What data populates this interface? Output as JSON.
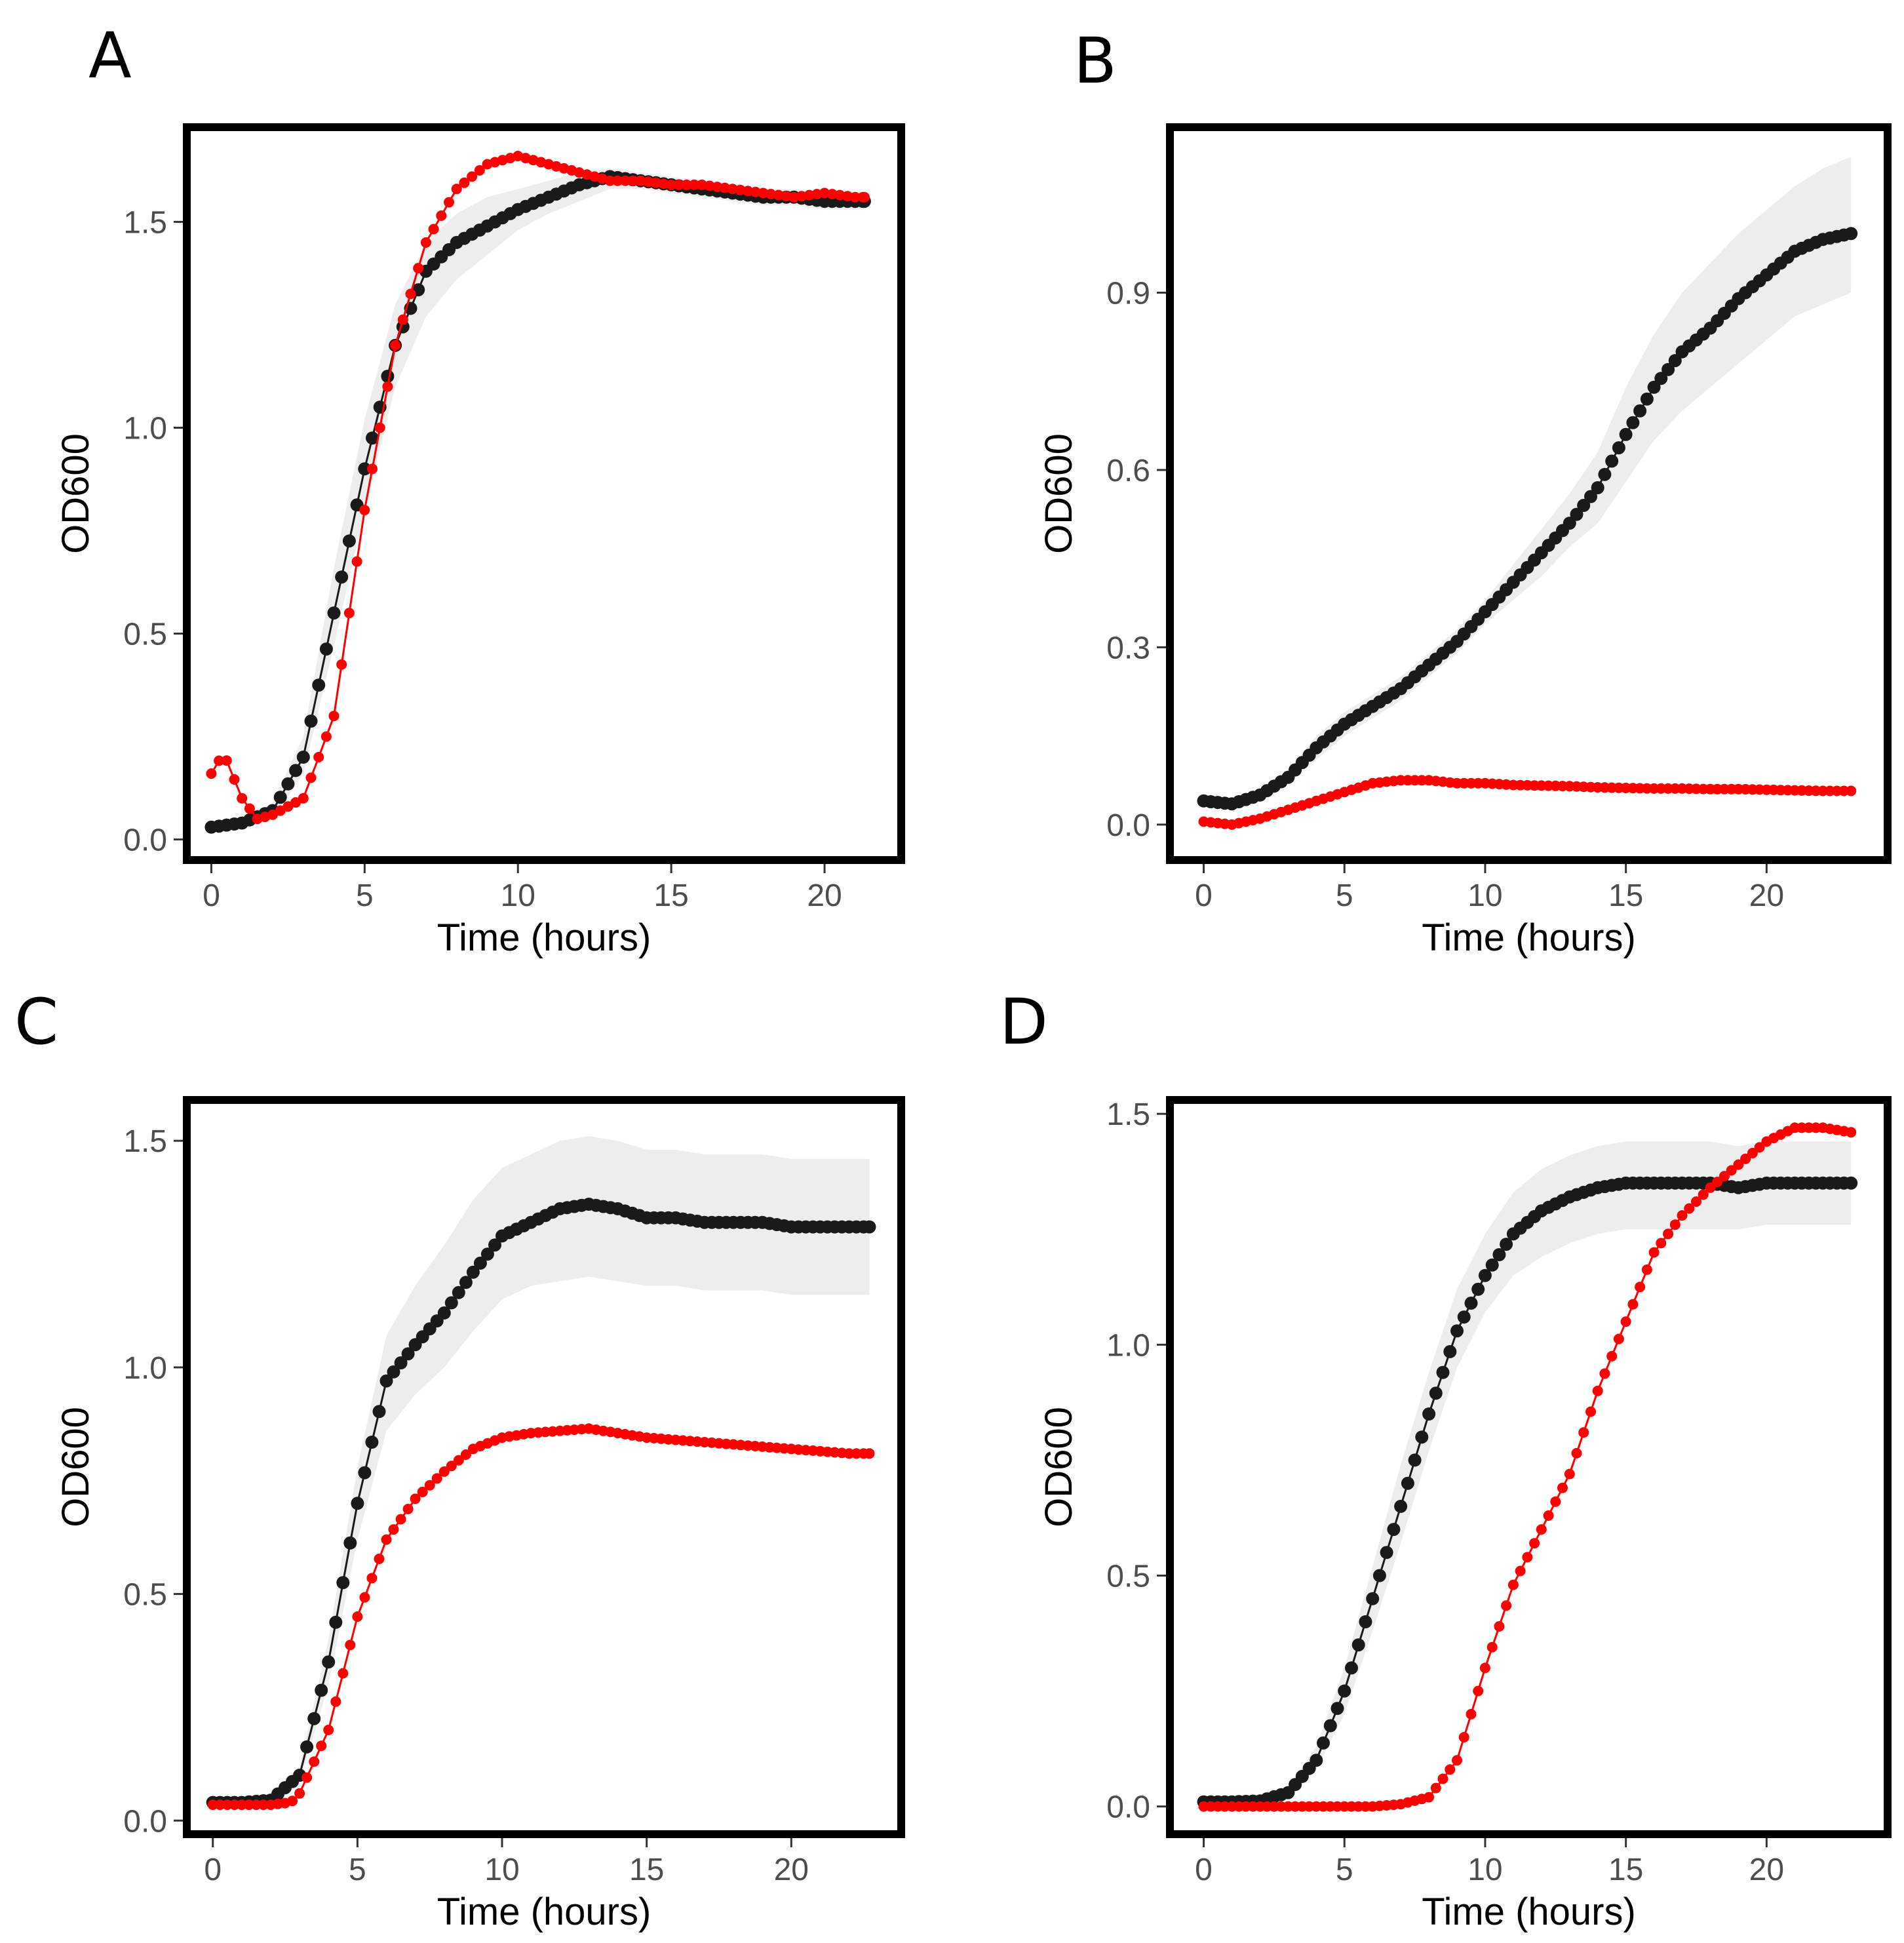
{
  "figure": {
    "panels": [
      {
        "letter": "A",
        "id": "A"
      },
      {
        "letter": "B",
        "id": "B"
      },
      {
        "letter": "C",
        "id": "C"
      },
      {
        "letter": "D",
        "id": "D"
      }
    ]
  },
  "colors": {
    "series_black": "#1a1a1a",
    "series_red": "#ff0000",
    "ribbon": "#ebebeb",
    "frame": "#000000",
    "tick_label": "#4d4d4d"
  },
  "chart_data": [
    {
      "panel": "A",
      "type": "line",
      "xlabel": "Time (hours)",
      "ylabel": "OD600",
      "xlim": [
        -0.8,
        22.5
      ],
      "ylim": [
        -0.05,
        1.73
      ],
      "x_ticks": [
        0,
        5,
        10,
        15,
        20
      ],
      "y_ticks": [
        0.0,
        0.5,
        1.0,
        1.5
      ],
      "x_tick_labels": [
        "0",
        "5",
        "10",
        "15",
        "20"
      ],
      "y_tick_labels": [
        "0.0",
        "0.5",
        "1.0",
        "1.5"
      ],
      "series": [
        {
          "name": "black",
          "color": "#1a1a1a",
          "x": [
            0,
            1,
            2,
            3,
            4,
            5,
            6,
            7,
            8,
            9,
            10,
            11,
            12,
            13,
            14,
            15,
            16,
            17,
            18,
            19,
            20,
            21,
            21.3
          ],
          "y": [
            0.03,
            0.04,
            0.07,
            0.2,
            0.55,
            0.9,
            1.2,
            1.38,
            1.45,
            1.49,
            1.53,
            1.56,
            1.59,
            1.61,
            1.6,
            1.59,
            1.58,
            1.57,
            1.56,
            1.56,
            1.55,
            1.55,
            1.55
          ],
          "ribbon_lower": [
            0.02,
            0.03,
            0.05,
            0.16,
            0.47,
            0.8,
            1.1,
            1.27,
            1.36,
            1.42,
            1.48,
            1.52,
            1.55,
            1.58,
            1.58,
            1.57,
            1.56,
            1.55,
            1.54,
            1.54,
            1.53,
            1.53,
            1.53
          ],
          "ribbon_upper": [
            0.04,
            0.05,
            0.09,
            0.25,
            0.66,
            1.02,
            1.3,
            1.45,
            1.52,
            1.56,
            1.58,
            1.6,
            1.62,
            1.63,
            1.62,
            1.61,
            1.6,
            1.59,
            1.58,
            1.58,
            1.57,
            1.57,
            1.57
          ]
        },
        {
          "name": "red",
          "color": "#ff0000",
          "x": [
            0,
            0.4,
            1,
            1.5,
            2,
            3,
            4,
            5,
            6,
            7,
            8,
            9,
            10,
            11,
            12,
            13,
            14,
            15,
            16,
            17,
            18,
            19,
            20,
            21,
            21.3
          ],
          "y": [
            0.16,
            0.21,
            0.1,
            0.05,
            0.06,
            0.1,
            0.3,
            0.8,
            1.2,
            1.45,
            1.58,
            1.64,
            1.66,
            1.64,
            1.62,
            1.6,
            1.6,
            1.59,
            1.59,
            1.58,
            1.57,
            1.56,
            1.57,
            1.56,
            1.56
          ]
        }
      ]
    },
    {
      "panel": "B",
      "type": "line",
      "xlabel": "Time (hours)",
      "ylabel": "OD600",
      "xlim": [
        -1.2,
        24.3
      ],
      "ylim": [
        -0.06,
        1.18
      ],
      "x_ticks": [
        0,
        5,
        10,
        15,
        20
      ],
      "y_ticks": [
        0.0,
        0.3,
        0.6,
        0.9
      ],
      "x_tick_labels": [
        "0",
        "5",
        "10",
        "15",
        "20"
      ],
      "y_tick_labels": [
        "0.0",
        "0.3",
        "0.6",
        "0.9"
      ],
      "series": [
        {
          "name": "black",
          "color": "#1a1a1a",
          "x": [
            0,
            1,
            2,
            3,
            4,
            5,
            6,
            7,
            8,
            9,
            10,
            11,
            12,
            13,
            14,
            15,
            16,
            17,
            18,
            19,
            20,
            21,
            22,
            23
          ],
          "y": [
            0.04,
            0.035,
            0.05,
            0.08,
            0.13,
            0.17,
            0.2,
            0.23,
            0.27,
            0.31,
            0.36,
            0.41,
            0.46,
            0.51,
            0.57,
            0.66,
            0.74,
            0.8,
            0.84,
            0.89,
            0.93,
            0.97,
            0.99,
            1.0
          ],
          "ribbon_lower": [
            0.035,
            0.03,
            0.045,
            0.07,
            0.11,
            0.15,
            0.18,
            0.21,
            0.25,
            0.29,
            0.34,
            0.38,
            0.42,
            0.47,
            0.51,
            0.58,
            0.65,
            0.7,
            0.74,
            0.78,
            0.82,
            0.86,
            0.88,
            0.9
          ],
          "ribbon_upper": [
            0.045,
            0.04,
            0.055,
            0.09,
            0.15,
            0.19,
            0.22,
            0.25,
            0.29,
            0.33,
            0.38,
            0.44,
            0.5,
            0.56,
            0.63,
            0.74,
            0.83,
            0.9,
            0.95,
            1.0,
            1.04,
            1.08,
            1.11,
            1.13
          ]
        },
        {
          "name": "red",
          "color": "#ff0000",
          "x": [
            0,
            1,
            2,
            3,
            4,
            5,
            6,
            7,
            8,
            9,
            10,
            11,
            12,
            13,
            14,
            15,
            16,
            17,
            18,
            19,
            20,
            21,
            22,
            23
          ],
          "y": [
            0.005,
            0.0,
            0.01,
            0.025,
            0.04,
            0.055,
            0.07,
            0.075,
            0.075,
            0.07,
            0.07,
            0.067,
            0.066,
            0.065,
            0.063,
            0.062,
            0.061,
            0.061,
            0.06,
            0.06,
            0.059,
            0.058,
            0.057,
            0.057
          ]
        }
      ]
    },
    {
      "panel": "C",
      "type": "line",
      "xlabel": "Time (hours)",
      "ylabel": "OD600",
      "xlim": [
        -0.9,
        23.8
      ],
      "ylim": [
        -0.03,
        1.59
      ],
      "x_ticks": [
        0,
        5,
        10,
        15,
        20
      ],
      "y_ticks": [
        0.0,
        0.5,
        1.0,
        1.5
      ],
      "x_tick_labels": [
        "0",
        "5",
        "10",
        "15",
        "20"
      ],
      "y_tick_labels": [
        "0.0",
        "0.5",
        "1.0",
        "1.5"
      ],
      "series": [
        {
          "name": "black",
          "color": "#1a1a1a",
          "x": [
            0,
            1,
            2,
            3,
            4,
            5,
            6,
            7,
            8,
            9,
            10,
            11,
            12,
            13,
            14,
            15,
            16,
            17,
            18,
            19,
            20,
            21,
            22,
            22.7
          ],
          "y": [
            0.04,
            0.04,
            0.045,
            0.1,
            0.35,
            0.7,
            0.97,
            1.05,
            1.12,
            1.21,
            1.29,
            1.32,
            1.35,
            1.36,
            1.35,
            1.33,
            1.33,
            1.32,
            1.32,
            1.32,
            1.31,
            1.31,
            1.31,
            1.31
          ],
          "ribbon_lower": [
            0.03,
            0.03,
            0.035,
            0.08,
            0.3,
            0.62,
            0.86,
            0.94,
            1.0,
            1.08,
            1.15,
            1.18,
            1.19,
            1.2,
            1.19,
            1.18,
            1.18,
            1.17,
            1.17,
            1.17,
            1.16,
            1.16,
            1.16,
            1.16
          ],
          "ribbon_upper": [
            0.05,
            0.05,
            0.055,
            0.12,
            0.4,
            0.78,
            1.07,
            1.18,
            1.27,
            1.37,
            1.44,
            1.47,
            1.5,
            1.51,
            1.5,
            1.48,
            1.48,
            1.47,
            1.47,
            1.47,
            1.46,
            1.46,
            1.46,
            1.46
          ]
        },
        {
          "name": "red",
          "color": "#ff0000",
          "x": [
            0,
            1,
            2,
            2.7,
            3,
            4,
            5,
            6,
            7,
            8,
            9,
            10,
            11,
            12,
            13,
            14,
            15,
            16,
            17,
            18,
            19,
            20,
            21,
            22,
            22.7
          ],
          "y": [
            0.035,
            0.035,
            0.035,
            0.04,
            0.06,
            0.2,
            0.45,
            0.62,
            0.71,
            0.77,
            0.82,
            0.845,
            0.855,
            0.86,
            0.865,
            0.855,
            0.845,
            0.84,
            0.835,
            0.83,
            0.825,
            0.82,
            0.815,
            0.81,
            0.81
          ]
        }
      ]
    },
    {
      "panel": "D",
      "type": "line",
      "xlabel": "Time (hours)",
      "ylabel": "OD600",
      "xlim": [
        -1.2,
        24.3
      ],
      "ylim": [
        -0.06,
        1.53
      ],
      "x_ticks": [
        0,
        5,
        10,
        15,
        20
      ],
      "y_ticks": [
        0.0,
        0.5,
        1.0,
        1.5
      ],
      "x_tick_labels": [
        "0",
        "5",
        "10",
        "15",
        "20"
      ],
      "y_tick_labels": [
        "0.0",
        "0.5",
        "1.0",
        "1.5"
      ],
      "series": [
        {
          "name": "black",
          "color": "#1a1a1a",
          "x": [
            0,
            1,
            2,
            3,
            4,
            5,
            6,
            7,
            8,
            9,
            10,
            11,
            12,
            13,
            14,
            15,
            16,
            17,
            18,
            19,
            20,
            21,
            22,
            23
          ],
          "y": [
            0.01,
            0.01,
            0.012,
            0.03,
            0.1,
            0.25,
            0.45,
            0.65,
            0.85,
            1.03,
            1.15,
            1.24,
            1.29,
            1.32,
            1.34,
            1.35,
            1.35,
            1.35,
            1.35,
            1.34,
            1.35,
            1.35,
            1.35,
            1.35
          ],
          "ribbon_lower": [
            0.005,
            0.005,
            0.007,
            0.02,
            0.08,
            0.2,
            0.38,
            0.57,
            0.77,
            0.95,
            1.07,
            1.15,
            1.19,
            1.22,
            1.24,
            1.25,
            1.25,
            1.25,
            1.25,
            1.25,
            1.26,
            1.26,
            1.26,
            1.26
          ],
          "ribbon_upper": [
            0.015,
            0.015,
            0.017,
            0.04,
            0.13,
            0.3,
            0.52,
            0.74,
            0.94,
            1.12,
            1.24,
            1.33,
            1.38,
            1.41,
            1.43,
            1.44,
            1.44,
            1.44,
            1.44,
            1.43,
            1.44,
            1.44,
            1.44,
            1.44
          ]
        },
        {
          "name": "red",
          "color": "#ff0000",
          "x": [
            0,
            1,
            2,
            3,
            4,
            5,
            6,
            7,
            8,
            9,
            10,
            11,
            12,
            13,
            14,
            15,
            16,
            17,
            18,
            19,
            20,
            21,
            22,
            23
          ],
          "y": [
            0.0,
            0.0,
            0.0,
            0.0,
            0.0,
            0.0,
            0.0,
            0.005,
            0.02,
            0.1,
            0.3,
            0.48,
            0.6,
            0.72,
            0.9,
            1.05,
            1.2,
            1.28,
            1.34,
            1.39,
            1.44,
            1.47,
            1.47,
            1.46
          ]
        }
      ]
    }
  ]
}
